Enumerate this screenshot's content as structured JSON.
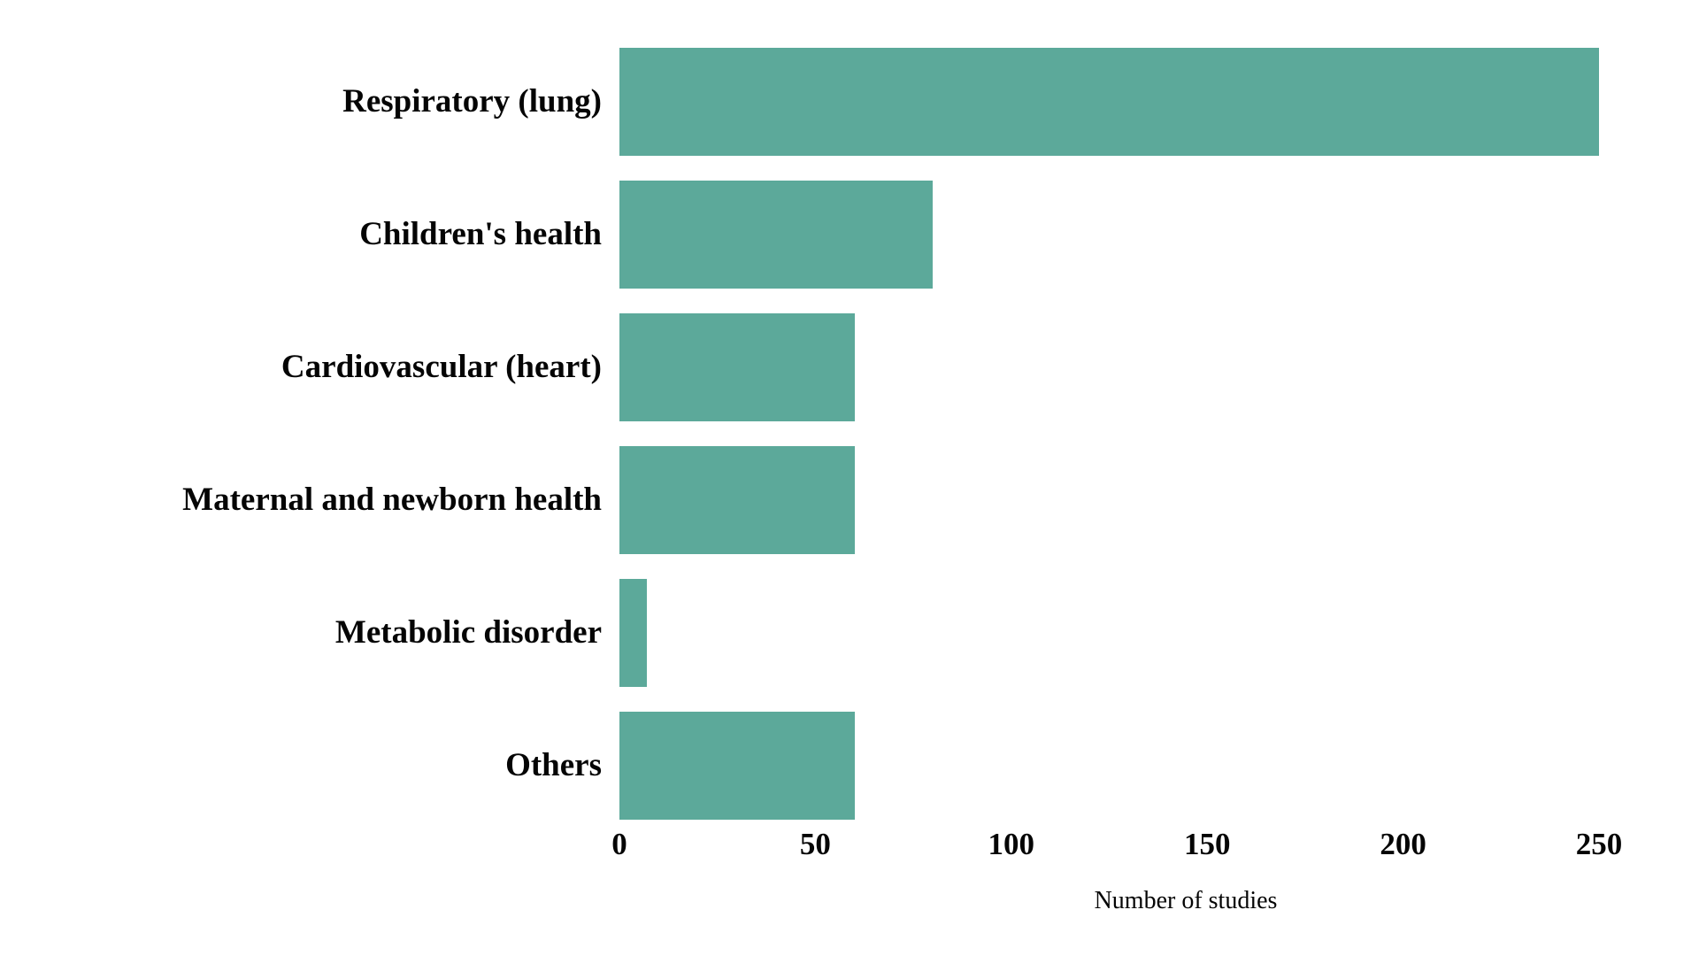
{
  "chart_data": {
    "type": "bar",
    "orientation": "horizontal",
    "title": "",
    "categories": [
      "Respiratory (lung)",
      "Children's health",
      "Cardiovascular (heart)",
      "Maternal and newborn health",
      "Metabolic disorder",
      "Others"
    ],
    "values": [
      250,
      80,
      60,
      60,
      7,
      60
    ],
    "xlabel": "Number of studies",
    "ylabel": "",
    "x_ticks": [
      0,
      50,
      100,
      150,
      200,
      250
    ],
    "xlim": [
      0,
      260
    ],
    "grid": false,
    "legend": "none",
    "bar_color": "#5ca99a",
    "text_color": "#050505",
    "background_color": "#ffffff"
  }
}
